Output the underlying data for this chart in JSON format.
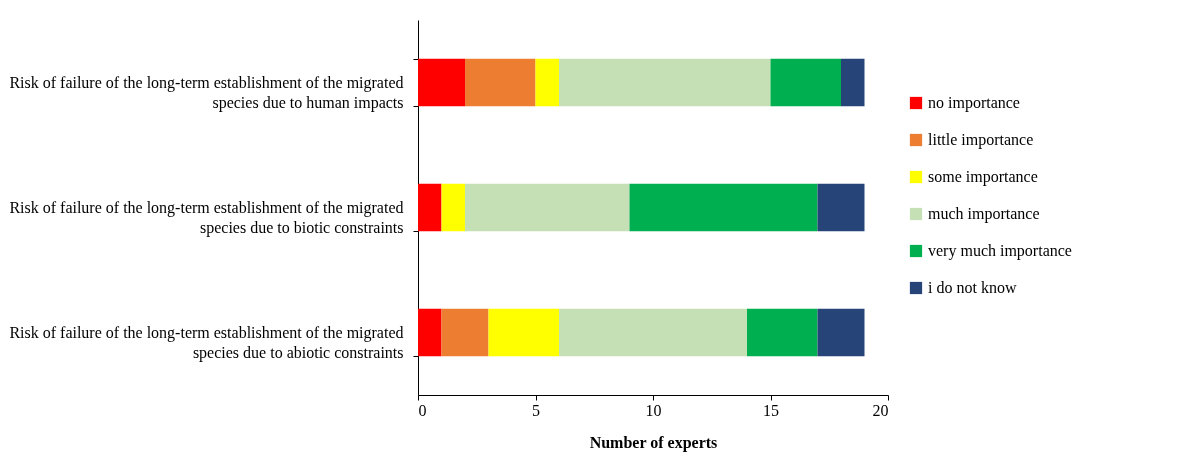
{
  "chart_data": {
    "type": "bar",
    "orientation": "horizontal",
    "stacked": true,
    "categories": [
      "Risk of failure of the long-term establishment of the migrated species due to human impacts",
      "Risk of failure of the long-term establishment of the migrated species due to biotic constraints",
      "Risk of failure of the long-term establishment of the migrated species due to abiotic constraints"
    ],
    "series": [
      {
        "name": "no importance",
        "color": "#ff0000",
        "values": [
          2,
          1,
          1
        ]
      },
      {
        "name": "little importance",
        "color": "#ed7d31",
        "values": [
          3,
          0,
          2
        ]
      },
      {
        "name": "some importance",
        "color": "#ffff00",
        "values": [
          1,
          1,
          3
        ]
      },
      {
        "name": "much importance",
        "color": "#c5e0b4",
        "values": [
          9,
          7,
          8
        ]
      },
      {
        "name": "very much importance",
        "color": "#00b050",
        "values": [
          3,
          8,
          3
        ]
      },
      {
        "name": "i do not know",
        "color": "#264478",
        "values": [
          1,
          2,
          2
        ]
      }
    ],
    "xlabel": "Number of experts",
    "xlim": [
      0,
      20
    ],
    "xticks": [
      0,
      5,
      10,
      15,
      20
    ],
    "grid": false,
    "legend": "right"
  }
}
